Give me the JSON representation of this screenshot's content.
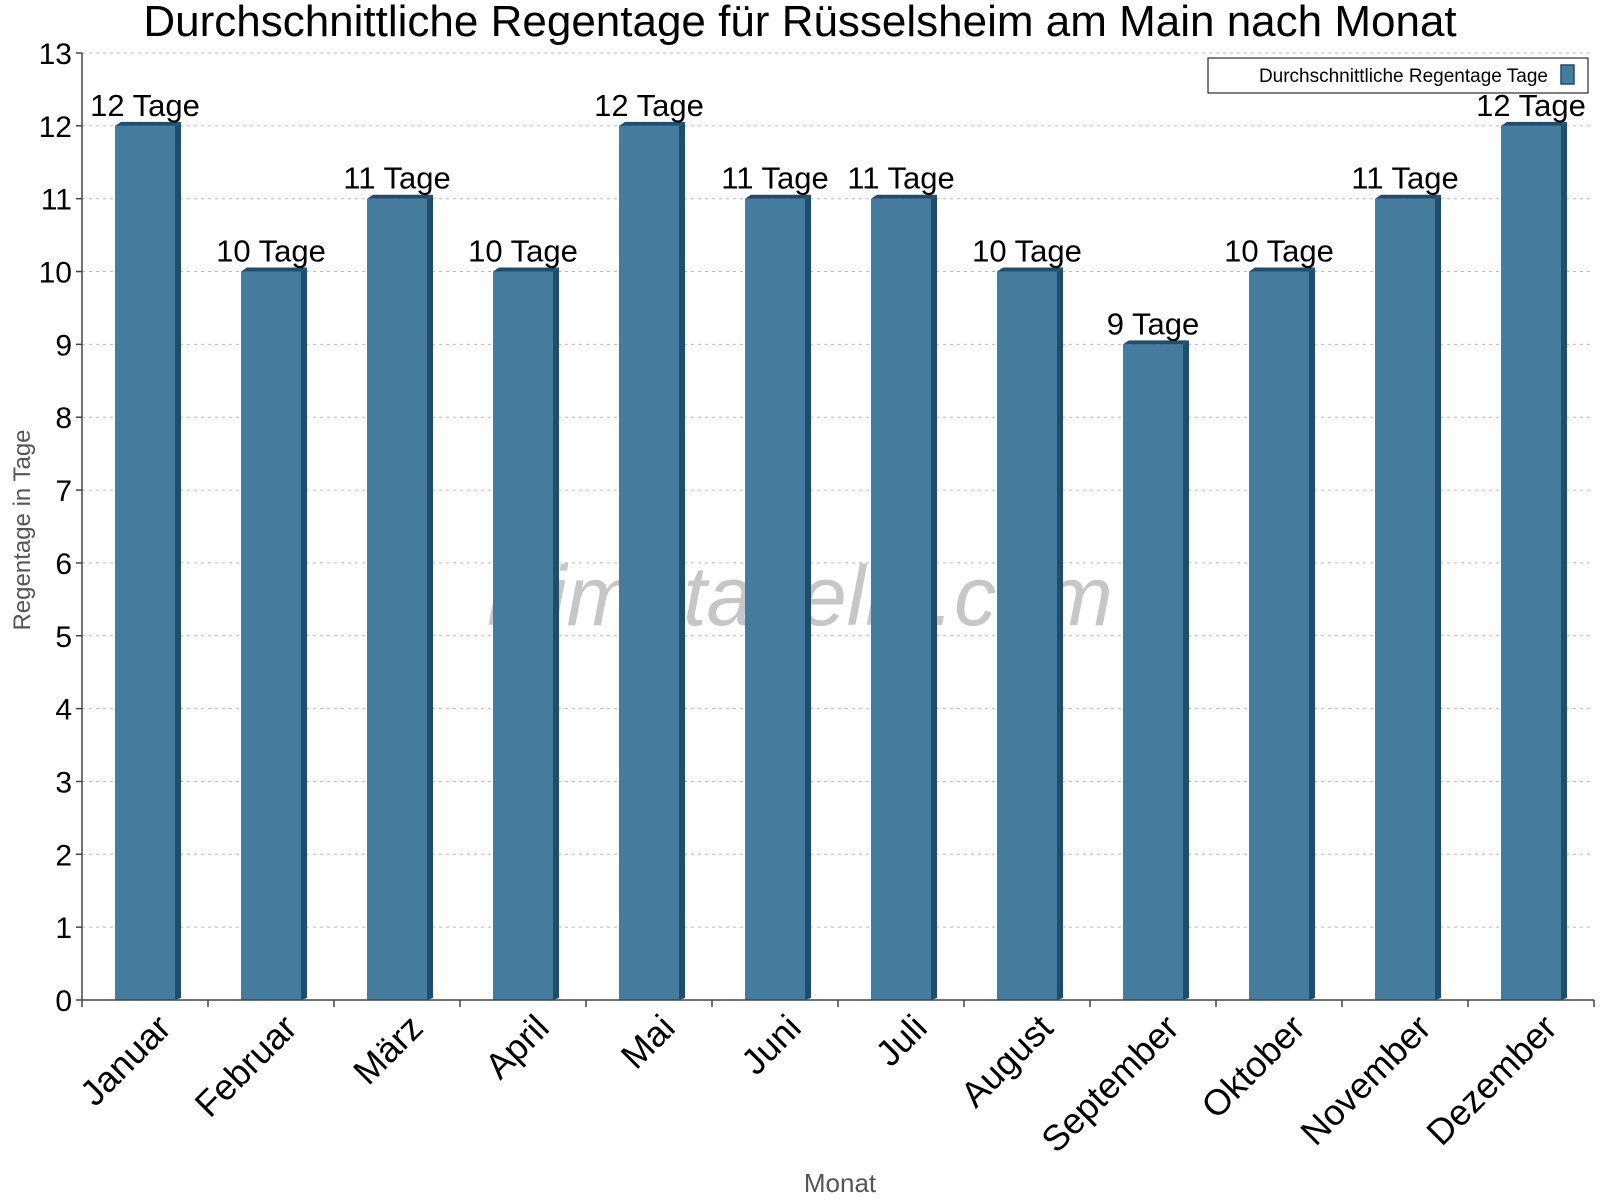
{
  "chart_data": {
    "type": "bar",
    "title": "Durchschnittliche Regentage für Rüsselsheim am Main nach Monat",
    "xlabel": "Monat",
    "ylabel": "Regentage in Tage",
    "categories": [
      "Januar",
      "Februar",
      "März",
      "April",
      "Mai",
      "Juni",
      "Juli",
      "August",
      "September",
      "Oktober",
      "November",
      "Dezember"
    ],
    "series": [
      {
        "name": "Durchschnittliche Regentage Tage",
        "values": [
          12,
          10,
          11,
          10,
          12,
          11,
          11,
          10,
          9,
          10,
          11,
          12
        ],
        "data_labels": [
          "12 Tage",
          "10 Tage",
          "11 Tage",
          "10 Tage",
          "12 Tage",
          "11 Tage",
          "11 Tage",
          "10 Tage",
          "9 Tage",
          "10 Tage",
          "11 Tage",
          "12 Tage"
        ]
      }
    ],
    "ylim": [
      0,
      13
    ],
    "yticks": [
      0,
      1,
      2,
      3,
      4,
      5,
      6,
      7,
      8,
      9,
      10,
      11,
      12,
      13
    ],
    "grid": true,
    "legend_position": "top-right",
    "colors": {
      "bar": "#457b9d",
      "bar_side": "#1d4e70",
      "bar_top": "#1d4e70",
      "axis": "#444444",
      "grid": "#bbbbbb",
      "axis_label": "#555555",
      "watermark": "#bdbdbd"
    }
  },
  "watermark": "klimatabelle.com"
}
